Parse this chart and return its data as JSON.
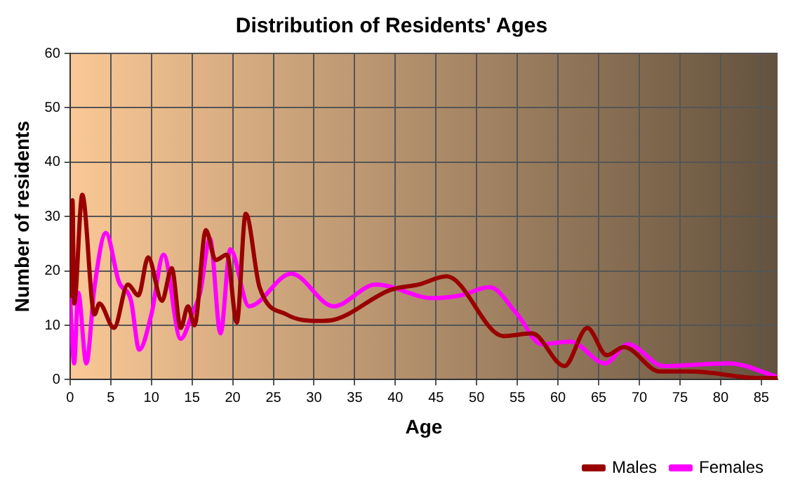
{
  "chart_data": {
    "type": "line",
    "title": "Distribution of Residents' Ages",
    "xlabel": "Age",
    "ylabel": "Number of residents",
    "xlim": [
      0,
      87
    ],
    "xticks": [
      0,
      5,
      10,
      15,
      20,
      25,
      30,
      35,
      40,
      45,
      50,
      55,
      60,
      65,
      70,
      75,
      80,
      85
    ],
    "ylim": [
      0,
      60
    ],
    "yticks": [
      0,
      10,
      20,
      30,
      40,
      50,
      60
    ],
    "grid": true,
    "legend": "bottom right",
    "marker": "none",
    "series": [
      {
        "name": "Males",
        "color": "#990000",
        "x": [
          0,
          0.3,
          0.5,
          1.5,
          3,
          3.6,
          5.4,
          7.1,
          8.4,
          9.6,
          11.3,
          12.5,
          13.6,
          14.5,
          15.3,
          16.7,
          17.9,
          19.3,
          20.5,
          21.6,
          23.3,
          26.6,
          30.6,
          32.4,
          39.4,
          42.9,
          46.3,
          53.3,
          56.8,
          60.8,
          63.6,
          66,
          68.1,
          72.5,
          76.5,
          84.7,
          87
        ],
        "values": [
          15,
          33,
          14,
          34,
          12,
          14,
          9.5,
          17.5,
          15.5,
          22.5,
          14.5,
          20.5,
          9.5,
          13.5,
          10,
          27.5,
          22,
          23,
          10.5,
          30.5,
          17,
          12,
          10.8,
          11,
          16.5,
          17.5,
          19,
          8,
          8.5,
          2.5,
          9.5,
          4.5,
          6,
          1.5,
          1.5,
          0.3,
          0.3
        ]
      },
      {
        "name": "Females",
        "color": "#ff00ff",
        "x": [
          0,
          0.5,
          1,
          2,
          3,
          4.4,
          6,
          7.5,
          8.5,
          10,
          11.5,
          13.6,
          15,
          16,
          17.2,
          18.5,
          19.7,
          22,
          27.2,
          32.4,
          37.6,
          44.6,
          48,
          51.6,
          55,
          58,
          61.5,
          65.8,
          68.6,
          73,
          81,
          87
        ],
        "values": [
          15,
          3,
          16,
          3,
          17,
          27,
          18,
          14.5,
          5.5,
          12,
          23,
          7.5,
          12,
          16,
          26,
          8.5,
          24,
          13.5,
          19.5,
          13.5,
          17.5,
          15,
          15.5,
          17,
          12,
          6.5,
          7,
          3,
          6.5,
          2.5,
          3,
          0.5
        ]
      }
    ]
  }
}
